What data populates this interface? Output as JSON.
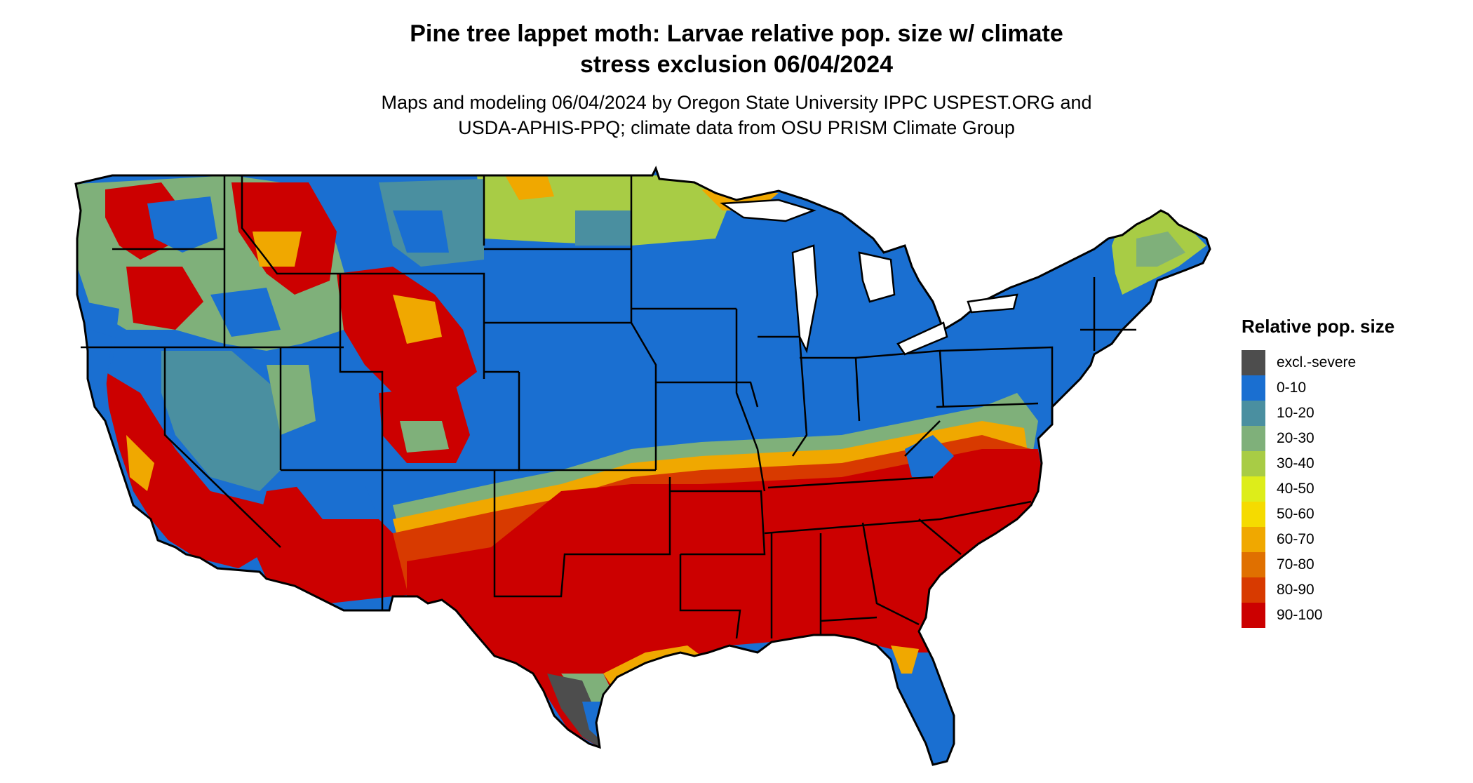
{
  "title": {
    "line1": "Pine tree lappet moth: Larvae relative pop. size w/ climate",
    "line2": "stress exclusion 06/04/2024"
  },
  "subtitle": {
    "line1": "Maps and modeling 06/04/2024 by Oregon State University IPPC USPEST.ORG and",
    "line2": "USDA-APHIS-PPQ; climate data from OSU PRISM Climate Group"
  },
  "legend": {
    "title": "Relative pop. size",
    "items": [
      {
        "label": "excl.-severe",
        "color": "#4d4d4d"
      },
      {
        "label": "0-10",
        "color": "#1a6fd1"
      },
      {
        "label": "10-20",
        "color": "#4a8fa0"
      },
      {
        "label": "20-30",
        "color": "#7fb07a"
      },
      {
        "label": "30-40",
        "color": "#a8cc45"
      },
      {
        "label": "40-50",
        "color": "#dded1a"
      },
      {
        "label": "50-60",
        "color": "#f5db00"
      },
      {
        "label": "60-70",
        "color": "#f0a800"
      },
      {
        "label": "70-80",
        "color": "#e07000"
      },
      {
        "label": "80-90",
        "color": "#d83a00"
      },
      {
        "label": "90-100",
        "color": "#cc0000"
      }
    ]
  },
  "colors": {
    "red": "#cc0000",
    "blue": "#1a6fd1",
    "teal": "#4a8fa0",
    "green": "#7fb07a",
    "lime": "#a8cc45",
    "orange": "#f0a800",
    "grey": "#4d4d4d",
    "border": "#000000"
  }
}
